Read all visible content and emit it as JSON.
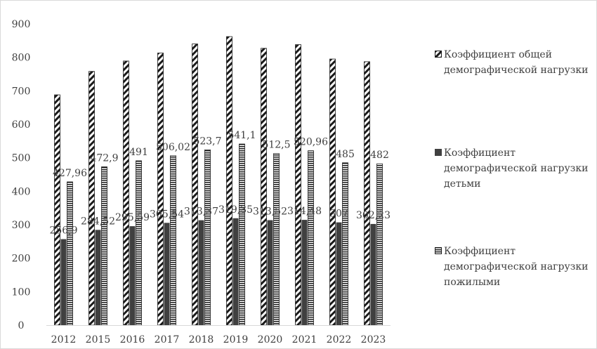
{
  "chart_data": {
    "type": "bar",
    "title": "",
    "xlabel": "",
    "ylabel": "",
    "ylim": [
      0,
      900
    ],
    "yticks": [
      0,
      100,
      200,
      300,
      400,
      500,
      600,
      700,
      800,
      900
    ],
    "grid": false,
    "legend_position": "right",
    "categories": [
      "2012",
      "2015",
      "2016",
      "2017",
      "2018",
      "2019",
      "2020",
      "2021",
      "2022",
      "2023"
    ],
    "series": [
      {
        "name": "Коэффициент общей демографической нагрузки",
        "pattern": "diagonal-stripes",
        "values": [
          688,
          758,
          789,
          813,
          840,
          862,
          827,
          838,
          795,
          787
        ],
        "labels": [
          "",
          "",
          "",
          "",
          "",
          "",
          "",
          "",
          "",
          ""
        ]
      },
      {
        "name": "Коэффициент демографической нагрузки детьми",
        "pattern": "solid-dark-gray",
        "values": [
          256.9,
          284.52,
          295.59,
          305.54,
          313.37,
          319.35,
          313.52,
          314.48,
          307,
          302.23
        ],
        "labels": [
          "256,9",
          "284,52",
          "295,59",
          "305,54",
          "313,37",
          "319,35",
          "313,52",
          "314,48",
          "307",
          "302,23"
        ]
      },
      {
        "name": "Коэффициент демографической нагрузки пожилыми",
        "pattern": "horizontal-stripes",
        "values": [
          427.96,
          472.9,
          491,
          506.02,
          523.7,
          541.1,
          512.5,
          520.96,
          485,
          482
        ],
        "labels": [
          "427,96",
          "472,9",
          "491",
          "506,02",
          "523,7",
          "541,1",
          "512,5",
          "520,96",
          "485",
          "482"
        ]
      }
    ]
  },
  "legend": {
    "items": [
      {
        "label": "Коэффициент общей демографической нагрузки"
      },
      {
        "label": "Коэффициент демографической нагрузки детьми"
      },
      {
        "label": "Коэффициент демографической нагрузки пожилыми"
      }
    ]
  }
}
